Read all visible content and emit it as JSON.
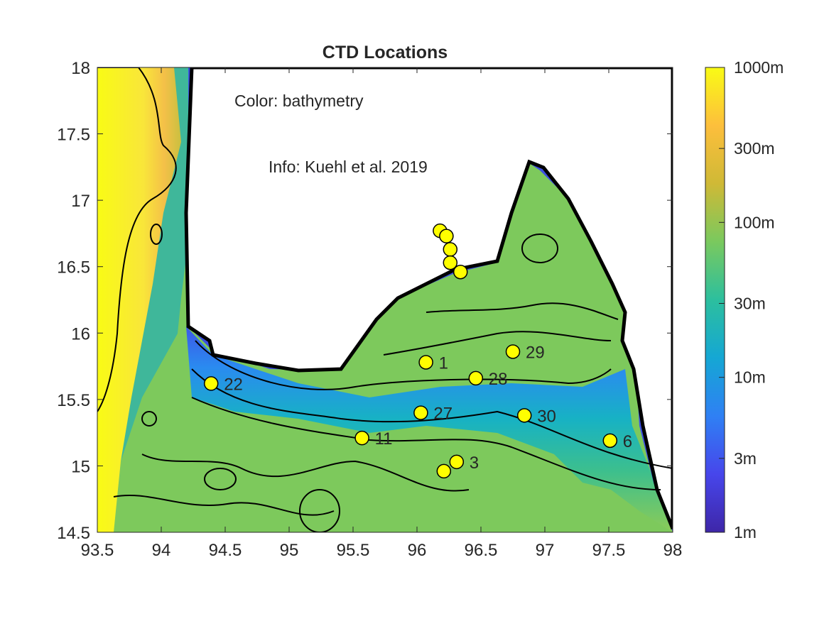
{
  "chart_data": {
    "type": "scatter",
    "title": "CTD Locations",
    "xlabel": "",
    "ylabel": "",
    "xlim": [
      93.5,
      98
    ],
    "ylim": [
      14.5,
      18
    ],
    "xticks": [
      "93.5",
      "94",
      "94.5",
      "95",
      "95.5",
      "96",
      "96.5",
      "97",
      "97.5",
      "98"
    ],
    "xtick_values": [
      93.5,
      94,
      94.5,
      95,
      95.5,
      96,
      96.5,
      97,
      97.5,
      98
    ],
    "yticks": [
      "14.5",
      "15",
      "15.5",
      "16",
      "16.5",
      "17",
      "17.5",
      "18"
    ],
    "ytick_values": [
      14.5,
      15,
      15.5,
      16,
      16.5,
      17,
      17.5,
      18
    ],
    "annotations": [
      "Color: bathymetry",
      "Info: Kuehl et al. 2019"
    ],
    "marker_color": "#ffff00",
    "stations": [
      {
        "label": "",
        "lon": 96.18,
        "lat": 16.77
      },
      {
        "label": "",
        "lon": 96.23,
        "lat": 16.73
      },
      {
        "label": "",
        "lon": 96.26,
        "lat": 16.63
      },
      {
        "label": "",
        "lon": 96.26,
        "lat": 16.53
      },
      {
        "label": "",
        "lon": 96.34,
        "lat": 16.46
      },
      {
        "label": "1",
        "lon": 96.07,
        "lat": 15.78
      },
      {
        "label": "29",
        "lon": 96.75,
        "lat": 15.86
      },
      {
        "label": "28",
        "lon": 96.46,
        "lat": 15.66
      },
      {
        "label": "22",
        "lon": 94.39,
        "lat": 15.62
      },
      {
        "label": "27",
        "lon": 96.03,
        "lat": 15.4
      },
      {
        "label": "30",
        "lon": 96.84,
        "lat": 15.38
      },
      {
        "label": "11",
        "lon": 95.57,
        "lat": 15.21
      },
      {
        "label": "6",
        "lon": 97.51,
        "lat": 15.19
      },
      {
        "label": "3",
        "lon": 96.31,
        "lat": 15.03
      },
      {
        "label": "",
        "lon": 96.21,
        "lat": 14.96
      }
    ],
    "colorbar": {
      "label": "bathymetry",
      "scale": "log",
      "range": [
        1,
        1000
      ],
      "ticks": [
        "1m",
        "3m",
        "10m",
        "30m",
        "100m",
        "300m",
        "1000m"
      ],
      "tick_values": [
        1,
        3,
        10,
        30,
        100,
        300,
        1000
      ],
      "colormap": [
        "#3e26a8",
        "#4746eb",
        "#2f80f4",
        "#15a7d4",
        "#2cbf9e",
        "#7ac95e",
        "#cfb936",
        "#fdbf3c",
        "#f9fb15"
      ]
    }
  }
}
